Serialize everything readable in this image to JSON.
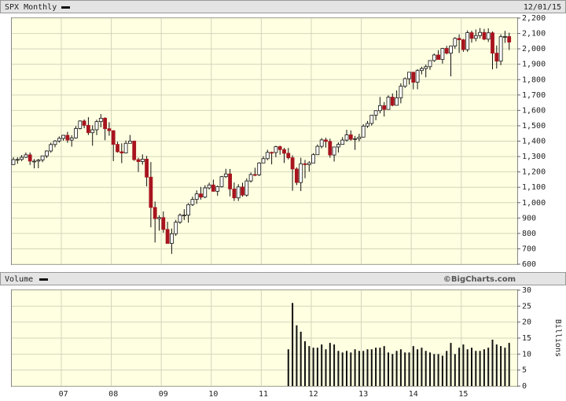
{
  "chart_data": [
    {
      "type": "candlestick",
      "title": "SPX Monthly",
      "date": "12/01/15",
      "open": [
        1248,
        1280,
        1281,
        1295,
        1311,
        1270,
        1270,
        1277,
        1304,
        1336,
        1378,
        1401,
        1418,
        1438,
        1407,
        1421,
        1482,
        1531,
        1503,
        1455,
        1474,
        1527,
        1549,
        1481,
        1468,
        1379,
        1331,
        1323,
        1386,
        1400,
        1280,
        1267,
        1283,
        1166,
        969,
        896,
        903,
        826,
        735,
        798,
        873,
        919,
        919,
        987,
        1021,
        1057,
        1036,
        1096,
        1115,
        1074,
        1104,
        1169,
        1187,
        1089,
        1031,
        1102,
        1049,
        1141,
        1183,
        1181,
        1258,
        1286,
        1327,
        1326,
        1364,
        1345,
        1321,
        1292,
        1219,
        1131,
        1253,
        1247,
        1258,
        1312,
        1366,
        1408,
        1398,
        1310,
        1362,
        1379,
        1407,
        1441,
        1412,
        1416,
        1426,
        1498,
        1515,
        1569,
        1598,
        1631,
        1606,
        1686,
        1633,
        1682,
        1757,
        1806,
        1848,
        1783,
        1859,
        1872,
        1884,
        1924,
        1960,
        1931,
        2003,
        1972,
        2018,
        2068,
        2059,
        1995,
        2105,
        2068,
        2086,
        2107,
        2063,
        2104,
        1972,
        1920,
        2079,
        2080
      ],
      "high": [
        1295,
        1295,
        1310,
        1326,
        1326,
        1284,
        1284,
        1306,
        1340,
        1390,
        1407,
        1431,
        1441,
        1461,
        1438,
        1498,
        1535,
        1541,
        1556,
        1503,
        1539,
        1576,
        1555,
        1523,
        1471,
        1396,
        1386,
        1404,
        1440,
        1404,
        1292,
        1314,
        1304,
        1264,
        1007,
        918,
        943,
        876,
        832,
        888,
        930,
        957,
        997,
        1039,
        1080,
        1102,
        1113,
        1130,
        1150,
        1112,
        1174,
        1220,
        1219,
        1131,
        1120,
        1130,
        1158,
        1196,
        1227,
        1263,
        1302,
        1344,
        1332,
        1370,
        1371,
        1356,
        1356,
        1308,
        1230,
        1292,
        1278,
        1270,
        1322,
        1378,
        1420,
        1422,
        1416,
        1363,
        1392,
        1426,
        1474,
        1470,
        1434,
        1448,
        1510,
        1531,
        1570,
        1598,
        1687,
        1654,
        1698,
        1710,
        1730,
        1776,
        1814,
        1849,
        1851,
        1868,
        1884,
        1897,
        1925,
        1969,
        1991,
        2006,
        2020,
        2019,
        2076,
        2094,
        2065,
        2120,
        2118,
        2126,
        2135,
        2130,
        2133,
        2113,
        2022,
        2094,
        2117,
        2105
      ],
      "low": [
        1245,
        1253,
        1270,
        1290,
        1245,
        1223,
        1224,
        1263,
        1290,
        1325,
        1360,
        1390,
        1403,
        1389,
        1364,
        1416,
        1476,
        1484,
        1440,
        1370,
        1439,
        1490,
        1406,
        1435,
        1270,
        1325,
        1257,
        1320,
        1386,
        1272,
        1200,
        1247,
        1106,
        840,
        741,
        818,
        805,
        735,
        667,
        784,
        862,
        887,
        870,
        978,
        992,
        1020,
        1029,
        1086,
        1071,
        1045,
        1099,
        1160,
        1041,
        1011,
        1011,
        1039,
        1039,
        1131,
        1172,
        1173,
        1258,
        1276,
        1249,
        1295,
        1311,
        1258,
        1281,
        1077,
        1114,
        1075,
        1159,
        1202,
        1258,
        1312,
        1353,
        1358,
        1292,
        1267,
        1326,
        1377,
        1396,
        1403,
        1343,
        1398,
        1426,
        1486,
        1501,
        1536,
        1581,
        1560,
        1605,
        1627,
        1633,
        1646,
        1746,
        1768,
        1737,
        1737,
        1834,
        1815,
        1863,
        1915,
        1931,
        1904,
        1964,
        1821,
        2001,
        1973,
        1981,
        1981,
        2040,
        2049,
        2067,
        2056,
        2045,
        1867,
        1872,
        1894,
        2039,
        1993
      ],
      "close": [
        1280,
        1281,
        1295,
        1311,
        1270,
        1270,
        1277,
        1304,
        1336,
        1378,
        1401,
        1418,
        1438,
        1407,
        1421,
        1482,
        1531,
        1503,
        1455,
        1474,
        1527,
        1549,
        1481,
        1468,
        1379,
        1331,
        1323,
        1386,
        1400,
        1280,
        1267,
        1283,
        1166,
        969,
        896,
        903,
        826,
        735,
        798,
        873,
        919,
        919,
        987,
        1021,
        1057,
        1036,
        1096,
        1115,
        1074,
        1104,
        1169,
        1187,
        1089,
        1031,
        1102,
        1049,
        1141,
        1183,
        1181,
        1258,
        1286,
        1327,
        1326,
        1364,
        1345,
        1321,
        1292,
        1219,
        1131,
        1253,
        1247,
        1258,
        1312,
        1366,
        1408,
        1398,
        1310,
        1362,
        1379,
        1407,
        1441,
        1412,
        1416,
        1426,
        1498,
        1515,
        1569,
        1598,
        1631,
        1606,
        1686,
        1633,
        1682,
        1757,
        1806,
        1848,
        1783,
        1859,
        1872,
        1884,
        1924,
        1960,
        1931,
        2003,
        1972,
        2018,
        2068,
        2059,
        1995,
        2105,
        2068,
        2086,
        2107,
        2063,
        2104,
        1972,
        1920,
        2079,
        2080,
        2044
      ],
      "up_color": "#ffffff",
      "down_color": "#a8141e",
      "ylim": [
        600,
        2200
      ],
      "yticks": [
        600,
        700,
        800,
        900,
        {
          "value": 1000,
          "label": "1,000"
        },
        {
          "value": 1100,
          "label": "1,100"
        },
        {
          "value": 1200,
          "label": "1,200"
        },
        {
          "value": 1300,
          "label": "1,300"
        },
        {
          "value": 1400,
          "label": "1,400"
        },
        {
          "value": 1500,
          "label": "1,500"
        },
        {
          "value": 1600,
          "label": "1,600"
        },
        {
          "value": 1700,
          "label": "1,700"
        },
        {
          "value": 1800,
          "label": "1,800"
        },
        {
          "value": 1900,
          "label": "1,900"
        },
        {
          "value": 2000,
          "label": "2,000"
        },
        {
          "value": 2100,
          "label": "2,100"
        },
        {
          "value": 2200,
          "label": "2,200"
        }
      ],
      "grid": true
    },
    {
      "type": "bar",
      "title": "Volume",
      "annotation": "©BigCharts.com",
      "ylabel": "Billions",
      "categories": [
        null,
        null,
        null,
        null,
        null,
        null,
        null,
        null,
        null,
        null,
        null,
        null,
        "07",
        null,
        null,
        null,
        null,
        null,
        null,
        null,
        null,
        null,
        null,
        null,
        "08",
        null,
        null,
        null,
        null,
        null,
        null,
        null,
        null,
        null,
        null,
        null,
        "09",
        null,
        null,
        null,
        null,
        null,
        null,
        null,
        null,
        null,
        null,
        null,
        "10",
        null,
        null,
        null,
        null,
        null,
        null,
        null,
        null,
        null,
        null,
        null,
        "11",
        null,
        null,
        null,
        null,
        null,
        null,
        null,
        null,
        null,
        null,
        null,
        "12",
        null,
        null,
        null,
        null,
        null,
        null,
        null,
        null,
        null,
        null,
        null,
        "13",
        null,
        null,
        null,
        null,
        null,
        null,
        null,
        null,
        null,
        null,
        null,
        "14",
        null,
        null,
        null,
        null,
        null,
        null,
        null,
        null,
        null,
        null,
        null,
        "15",
        null,
        null,
        null,
        null,
        null,
        null,
        null,
        null,
        null,
        null,
        null
      ],
      "values": [
        null,
        null,
        null,
        null,
        null,
        null,
        null,
        null,
        null,
        null,
        null,
        null,
        null,
        null,
        null,
        null,
        null,
        null,
        null,
        null,
        null,
        null,
        null,
        null,
        null,
        null,
        null,
        null,
        null,
        null,
        null,
        null,
        null,
        null,
        null,
        null,
        null,
        null,
        null,
        null,
        null,
        null,
        null,
        null,
        null,
        null,
        null,
        null,
        null,
        null,
        null,
        null,
        null,
        null,
        null,
        null,
        null,
        null,
        null,
        null,
        null,
        null,
        null,
        null,
        null,
        null,
        11.5,
        26,
        19,
        17,
        14,
        12.5,
        12,
        12,
        13,
        11.5,
        13.5,
        13,
        11,
        10.5,
        11,
        10.5,
        11.5,
        11,
        11,
        11.5,
        11.5,
        12,
        12,
        12.5,
        10.5,
        10,
        11,
        11.5,
        10.5,
        10.5,
        12.5,
        11.5,
        12,
        11,
        10.5,
        10,
        10,
        9.5,
        11,
        13.5,
        10,
        12,
        13,
        11.5,
        12,
        11,
        11,
        11.5,
        12,
        14.5,
        13,
        12.5,
        12,
        13.5
      ],
      "color": "#111111",
      "ylim": [
        0,
        30
      ],
      "yticks": [
        0,
        5,
        10,
        15,
        20,
        25,
        30
      ],
      "grid": true
    }
  ]
}
